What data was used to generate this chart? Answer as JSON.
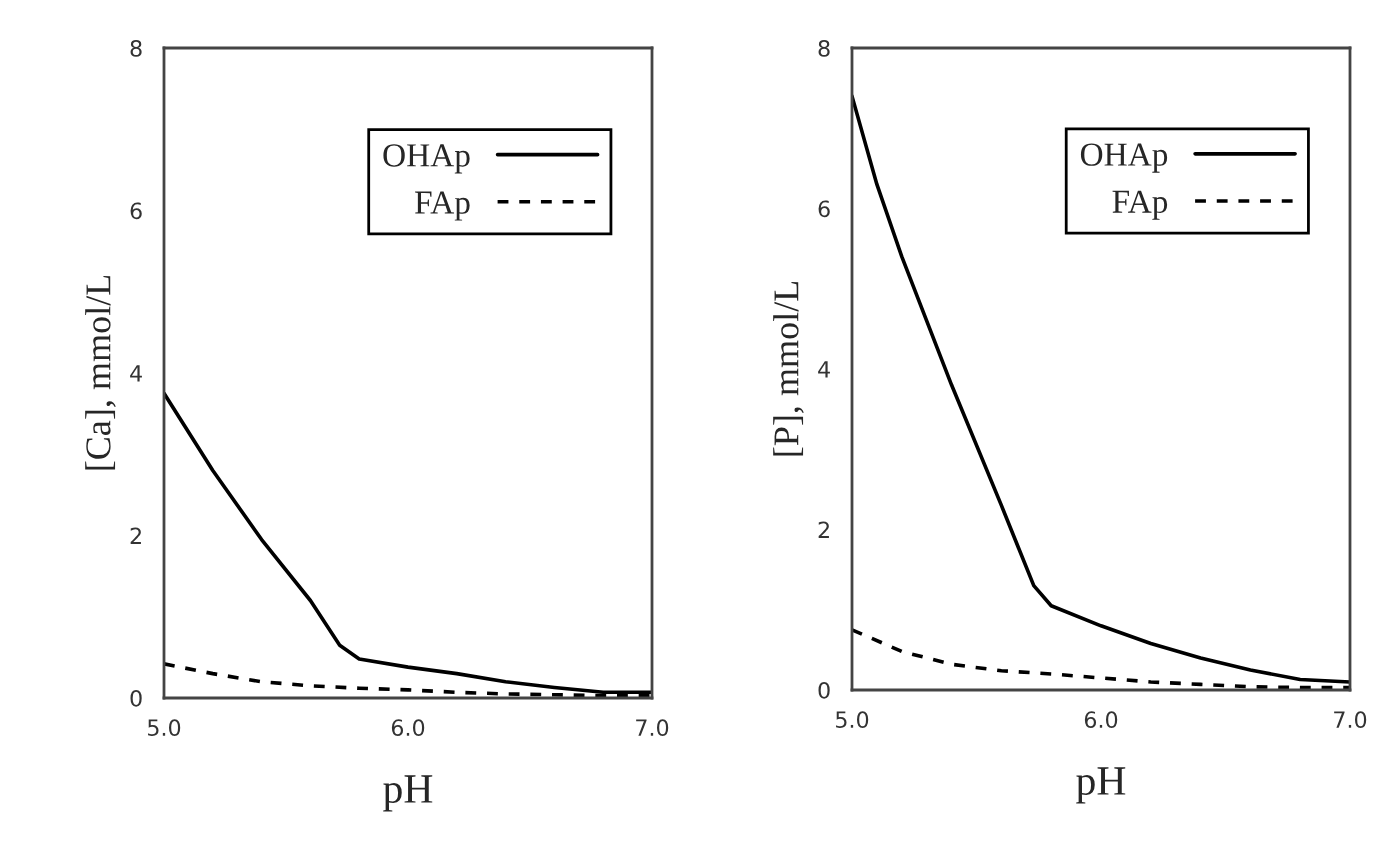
{
  "chart_data": [
    {
      "type": "line",
      "xlabel": "pH",
      "ylabel": "[Ca], mmol/L",
      "xlim": [
        5.0,
        7.0
      ],
      "ylim": [
        0,
        8
      ],
      "xticks": [
        {
          "value": 5.0,
          "label": "5.0"
        },
        {
          "value": 6.0,
          "label": "6.0"
        },
        {
          "value": 7.0,
          "label": "7.0"
        }
      ],
      "yticks": [
        0,
        2,
        4,
        6,
        8
      ],
      "grid": false,
      "legend": "top right",
      "marker": "none",
      "series": [
        {
          "name": "OHAp",
          "color": "#000000",
          "line_style": "solid",
          "x": [
            5.0,
            5.2,
            5.4,
            5.6,
            5.72,
            5.8,
            6.0,
            6.2,
            6.4,
            6.6,
            6.8,
            7.0
          ],
          "values": [
            3.75,
            2.8,
            1.95,
            1.2,
            0.65,
            0.48,
            0.38,
            0.3,
            0.2,
            0.13,
            0.07,
            0.07
          ]
        },
        {
          "name": "FAp",
          "color": "#000000",
          "line_style": "dashed",
          "x": [
            5.0,
            5.2,
            5.4,
            5.6,
            5.8,
            6.0,
            6.2,
            6.4,
            6.6,
            6.8,
            7.0
          ],
          "values": [
            0.42,
            0.3,
            0.2,
            0.15,
            0.12,
            0.1,
            0.07,
            0.05,
            0.04,
            0.03,
            0.03
          ]
        }
      ]
    },
    {
      "type": "line",
      "xlabel": "pH",
      "ylabel": "[P], mmol/L",
      "xlim": [
        5.0,
        7.0
      ],
      "ylim": [
        0,
        8
      ],
      "xticks": [
        {
          "value": 5.0,
          "label": "5.0"
        },
        {
          "value": 6.0,
          "label": "6.0"
        },
        {
          "value": 7.0,
          "label": "7.0"
        }
      ],
      "yticks": [
        0,
        2,
        4,
        6,
        8
      ],
      "grid": false,
      "legend": "top right",
      "marker": "none",
      "series": [
        {
          "name": "OHAp",
          "color": "#000000",
          "line_style": "solid",
          "x": [
            5.0,
            5.1,
            5.2,
            5.4,
            5.6,
            5.73,
            5.8,
            6.0,
            6.2,
            6.4,
            6.6,
            6.8,
            7.0
          ],
          "values": [
            7.4,
            6.3,
            5.4,
            3.8,
            2.3,
            1.3,
            1.05,
            0.8,
            0.58,
            0.4,
            0.25,
            0.13,
            0.1
          ]
        },
        {
          "name": "FAp",
          "color": "#000000",
          "line_style": "dashed",
          "x": [
            5.0,
            5.2,
            5.4,
            5.6,
            5.8,
            6.0,
            6.2,
            6.4,
            6.6,
            6.8,
            7.0
          ],
          "values": [
            0.75,
            0.48,
            0.32,
            0.24,
            0.2,
            0.15,
            0.1,
            0.07,
            0.04,
            0.03,
            0.03
          ]
        }
      ]
    }
  ]
}
